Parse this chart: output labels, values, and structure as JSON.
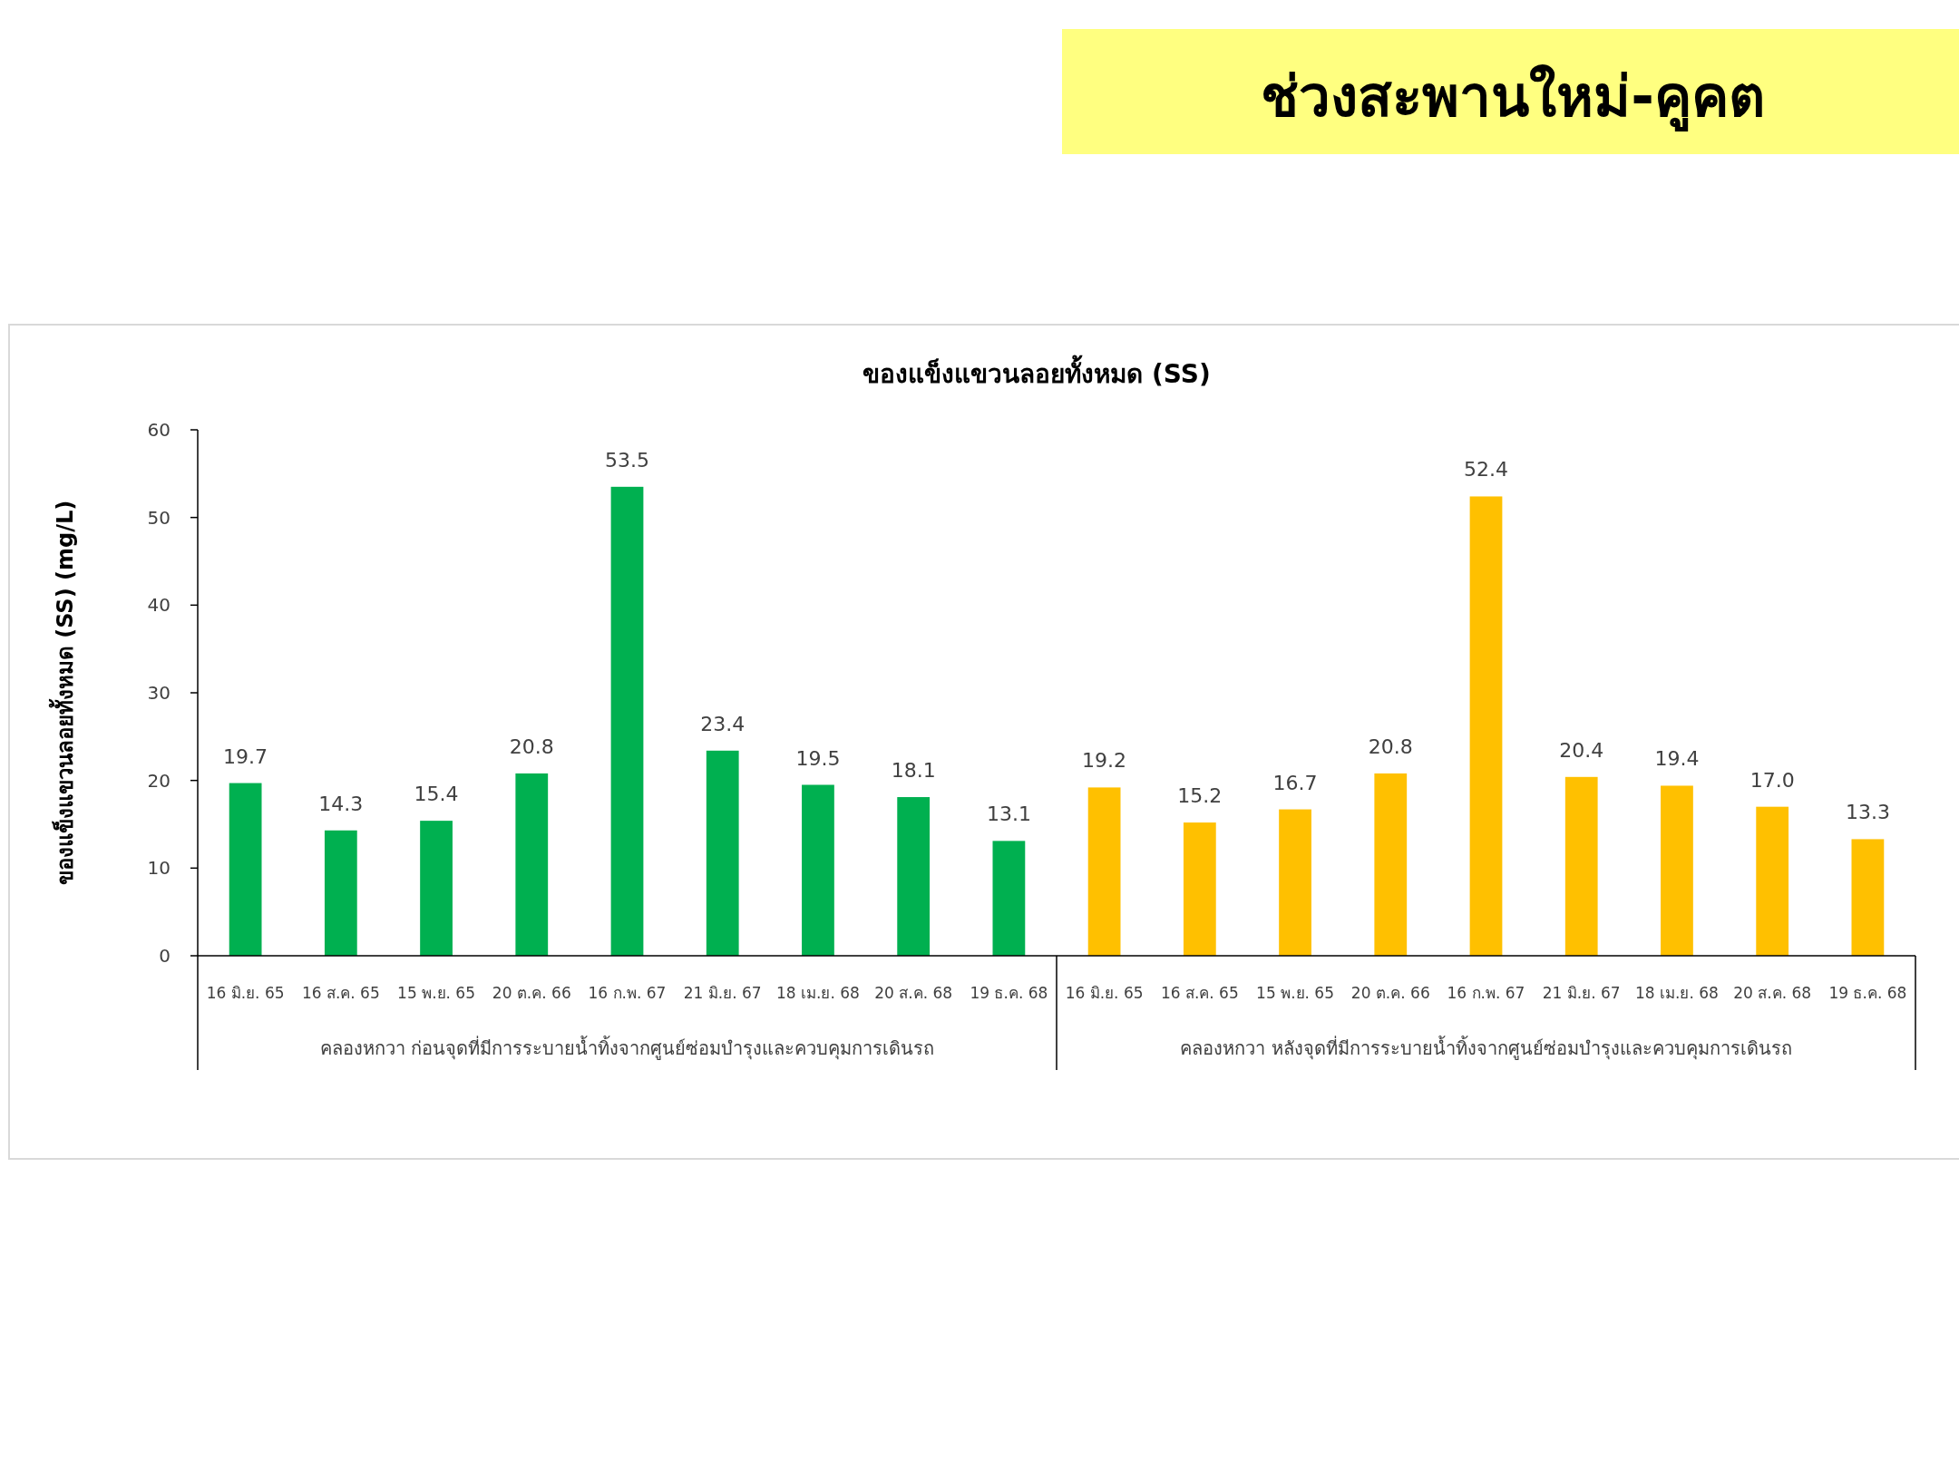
{
  "chart_data": {
    "type": "bar",
    "title": "ช่วงสะพานใหม่-คูคต",
    "subtitle": "ของแข็งแขวนลอยทั้งหมด (SS)",
    "ylabel": "ของแข็งแขวนลอยทั้งหมด (SS) (mg/L)",
    "categories": [
      "16 มิ.ย. 65",
      "16 ส.ค. 65",
      "15 พ.ย. 65",
      "20 ต.ค. 66",
      "16 ก.พ. 67",
      "21 มิ.ย. 67",
      "18 เม.ย. 68",
      "20 ส.ค. 68",
      "19 ธ.ค. 68",
      "16 มิ.ย. 65",
      "16 ส.ค. 65",
      "15 พ.ย. 65",
      "20 ต.ค. 66",
      "16 ก.พ. 67",
      "21 มิ.ย. 67",
      "18 เม.ย. 68",
      "20 ส.ค. 68",
      "19 ธ.ค. 68"
    ],
    "values": [
      19.7,
      14.3,
      15.4,
      20.8,
      53.5,
      23.4,
      19.5,
      18.1,
      13.1,
      19.2,
      15.2,
      16.7,
      20.8,
      52.4,
      20.4,
      19.4,
      17.0,
      13.3
    ],
    "value_labels": [
      "19.7",
      "14.3",
      "15.4",
      "20.8",
      "53.5",
      "23.4",
      "19.5",
      "18.1",
      "13.1",
      "19.2",
      "15.2",
      "16.7",
      "20.8",
      "52.4",
      "20.4",
      "19.4",
      "17.0",
      "13.3"
    ],
    "colors": [
      "#00b050",
      "#00b050",
      "#00b050",
      "#00b050",
      "#00b050",
      "#00b050",
      "#00b050",
      "#00b050",
      "#00b050",
      "#ffc000",
      "#ffc000",
      "#ffc000",
      "#ffc000",
      "#ffc000",
      "#ffc000",
      "#ffc000",
      "#ffc000",
      "#ffc000"
    ],
    "annotations": [
      "คลองหกวา ก่อนจุดที่มีการระบายน้ำทิ้งจากศูนย์ซ่อมบำรุงและควบคุมการเดินรถ",
      "คลองหกวา หลังจุดที่มีการระบายน้ำทิ้งจากศูนย์ซ่อมบำรุงและควบคุมการเดินรถ"
    ],
    "ylim": [
      0,
      60
    ],
    "yticks": [
      0,
      10,
      20,
      30,
      40,
      50,
      60
    ],
    "grid": false
  }
}
